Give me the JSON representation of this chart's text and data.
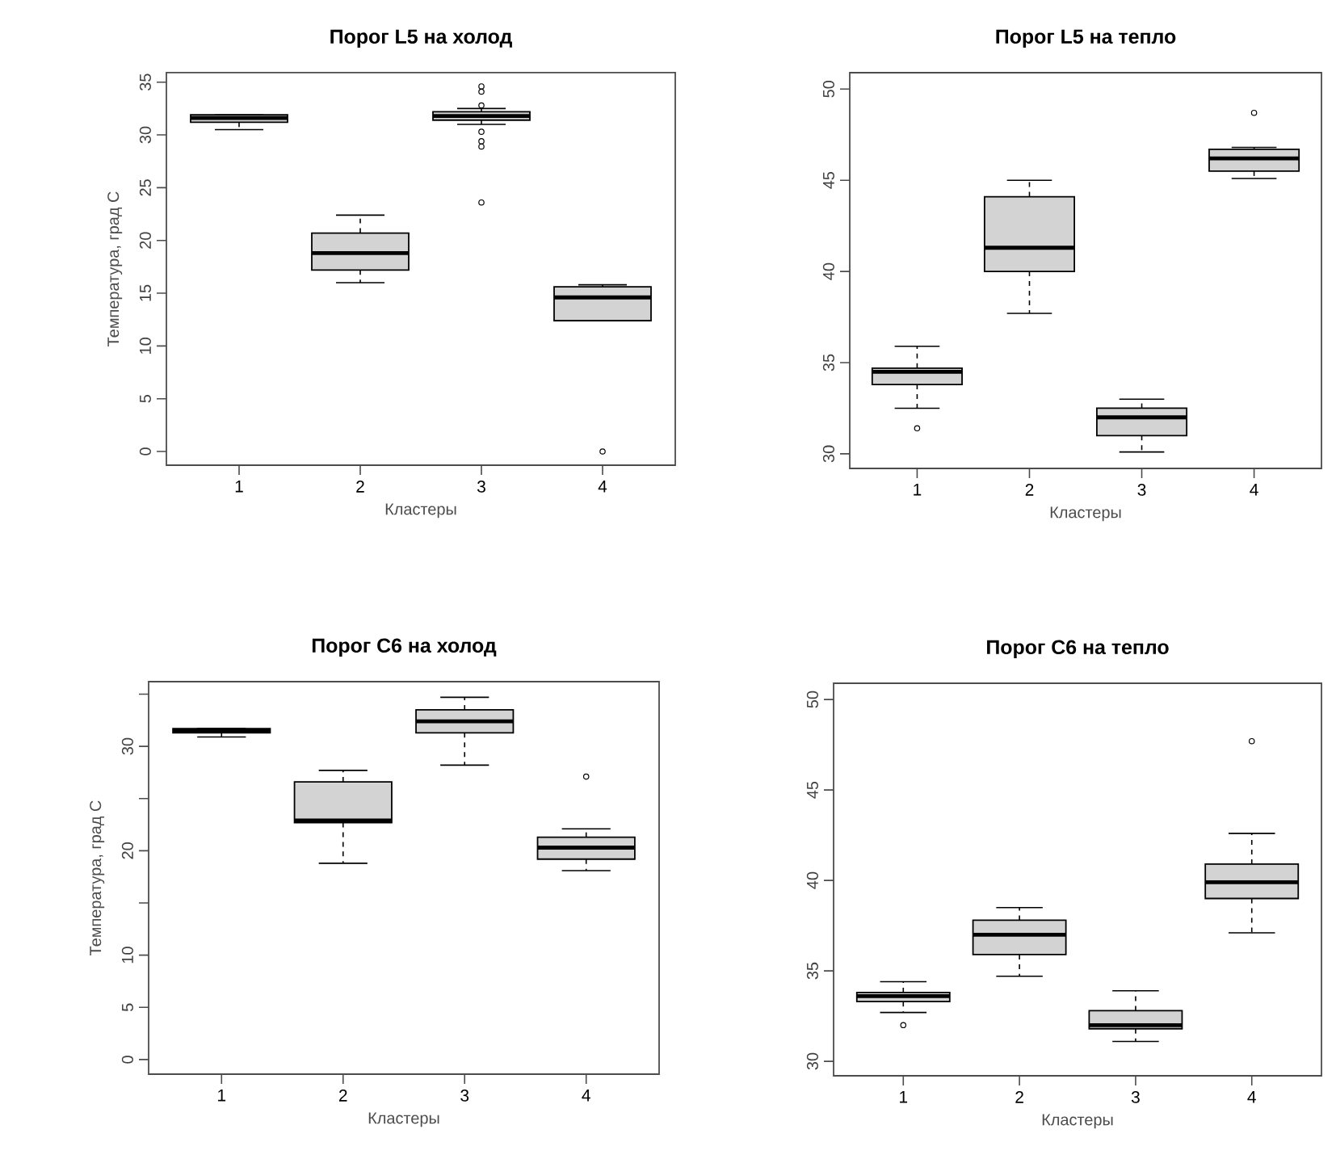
{
  "chart_data": [
    {
      "type": "box",
      "title": "Порог L5 на холод",
      "xlabel": "Кластеры",
      "ylabel": "Температура, град С",
      "categories": [
        "1",
        "2",
        "3",
        "4"
      ],
      "color": "#d3d3d3",
      "ylim": [
        -1.3,
        35.9
      ],
      "yticks": [
        0,
        5,
        10,
        15,
        20,
        25,
        30,
        35
      ],
      "boxes": [
        {
          "low": 30.5,
          "q1": 31.2,
          "median": 31.6,
          "q3": 31.9,
          "high": 31.9
        },
        {
          "low": 16.0,
          "q1": 17.2,
          "median": 18.8,
          "q3": 20.7,
          "high": 22.4
        },
        {
          "low": 31.0,
          "q1": 31.4,
          "median": 31.8,
          "q3": 32.2,
          "high": 32.5,
          "outliers": [
            34.6,
            34.1,
            32.8,
            30.3,
            29.4,
            28.9,
            23.6
          ]
        },
        {
          "low": 12.4,
          "q1": 12.4,
          "median": 14.6,
          "q3": 15.6,
          "high": 15.8,
          "outliers": [
            0
          ]
        }
      ]
    },
    {
      "type": "box",
      "title": "Порог L5 на тепло",
      "xlabel": "Кластеры",
      "categories": [
        "1",
        "2",
        "3",
        "4"
      ],
      "color": "#d3d3d3",
      "ylim": [
        29.2,
        50.9
      ],
      "yticks": [
        30,
        35,
        40,
        45,
        50
      ],
      "boxes": [
        {
          "low": 32.5,
          "q1": 33.8,
          "median": 34.5,
          "q3": 34.7,
          "high": 35.9,
          "outliers": [
            31.4
          ]
        },
        {
          "low": 37.7,
          "q1": 40.0,
          "median": 41.3,
          "q3": 44.1,
          "high": 45.0
        },
        {
          "low": 30.1,
          "q1": 31.0,
          "median": 32.0,
          "q3": 32.5,
          "high": 33.0
        },
        {
          "low": 45.1,
          "q1": 45.5,
          "median": 46.2,
          "q3": 46.7,
          "high": 46.8,
          "outliers": [
            48.7
          ]
        }
      ]
    },
    {
      "type": "box",
      "title": "Порог C6 на холод",
      "xlabel": "Кластеры",
      "ylabel": "Температура, град С",
      "categories": [
        "1",
        "2",
        "3",
        "4"
      ],
      "color": "#d3d3d3",
      "ylim": [
        -1.4,
        36.2
      ],
      "yticks": [
        0,
        5,
        10,
        {
          "value": 15,
          "label": null
        },
        20,
        {
          "value": 25,
          "label": null
        },
        30,
        {
          "value": 35,
          "label": null
        }
      ],
      "boxes": [
        {
          "low": 30.9,
          "q1": 31.3,
          "median": 31.5,
          "q3": 31.7,
          "high": 31.7
        },
        {
          "low": 18.8,
          "q1": 22.7,
          "median": 22.9,
          "q3": 26.6,
          "high": 27.7
        },
        {
          "low": 28.2,
          "q1": 31.3,
          "median": 32.4,
          "q3": 33.5,
          "high": 34.7
        },
        {
          "low": 18.1,
          "q1": 19.2,
          "median": 20.3,
          "q3": 21.3,
          "high": 22.1,
          "outliers": [
            27.1
          ]
        }
      ]
    },
    {
      "type": "box",
      "title": "Порог C6 на тепло",
      "xlabel": "Кластеры",
      "categories": [
        "1",
        "2",
        "3",
        "4"
      ],
      "color": "#d3d3d3",
      "ylim": [
        29.2,
        50.9
      ],
      "yticks": [
        30,
        35,
        40,
        45,
        50
      ],
      "boxes": [
        {
          "low": 32.7,
          "q1": 33.3,
          "median": 33.6,
          "q3": 33.8,
          "high": 34.4,
          "outliers": [
            32.0
          ]
        },
        {
          "low": 34.7,
          "q1": 35.9,
          "median": 37.0,
          "q3": 37.8,
          "high": 38.5
        },
        {
          "low": 31.1,
          "q1": 31.8,
          "median": 32.0,
          "q3": 32.8,
          "high": 33.9
        },
        {
          "low": 37.1,
          "q1": 39.0,
          "median": 39.9,
          "q3": 40.9,
          "high": 42.6,
          "outliers": [
            47.7
          ]
        }
      ]
    }
  ]
}
